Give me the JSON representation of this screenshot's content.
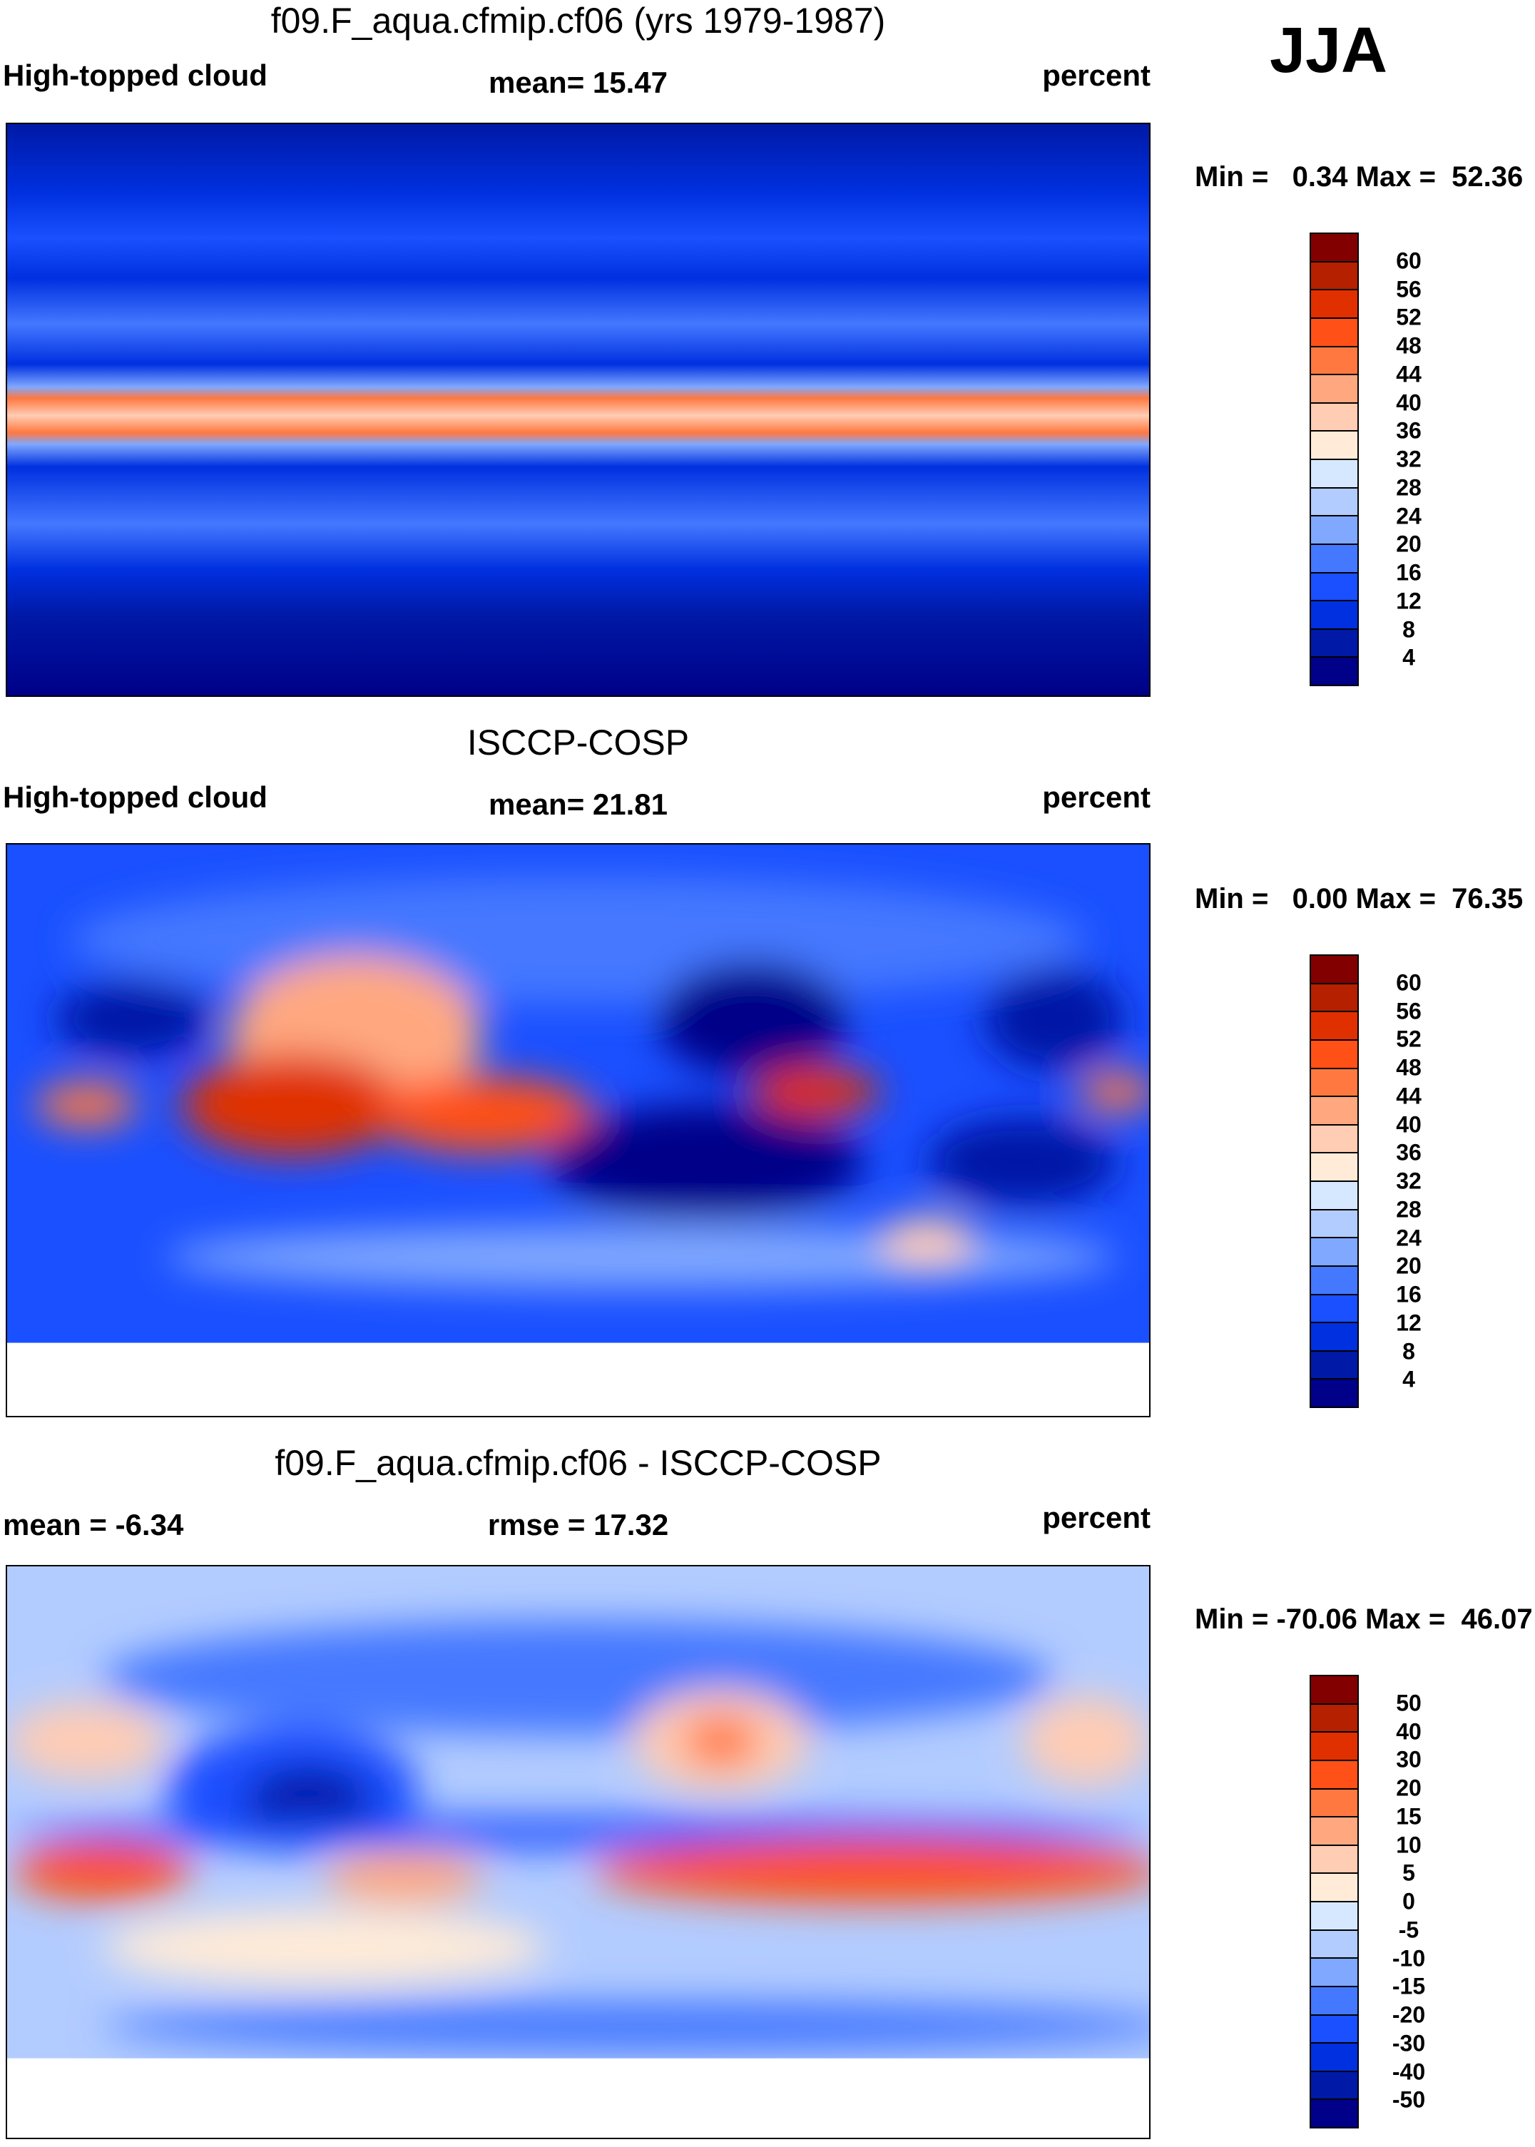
{
  "season": "JJA",
  "units": "percent",
  "colors": [
    "#000088",
    "#0019a6",
    "#0030e0",
    "#1a50ff",
    "#4478ff",
    "#80a8ff",
    "#b3ccff",
    "#d6e8ff",
    "#ffebd8",
    "#ffccb4",
    "#ffa880",
    "#ff7840",
    "#ff5018",
    "#e03000",
    "#b42000",
    "#820000"
  ],
  "chart_data": [
    {
      "type": "heatmap",
      "title": "f09.F_aqua.cfmip.cf06 (yrs 1979-1987)",
      "left_label": "High-topped cloud",
      "center_label": "mean=  15.47",
      "right_label": "percent",
      "minmax": "Min =   0.34 Max =  52.36",
      "mean": 15.47,
      "min": 0.34,
      "max": 52.36,
      "levels": [
        "60",
        "56",
        "52",
        "48",
        "44",
        "40",
        "36",
        "32",
        "28",
        "24",
        "20",
        "16",
        "12",
        "8",
        "4"
      ]
    },
    {
      "type": "heatmap",
      "title": "ISCCP-COSP",
      "left_label": "High-topped cloud",
      "center_label": "mean=  21.81",
      "right_label": "percent",
      "minmax": "Min =   0.00 Max =  76.35",
      "mean": 21.81,
      "min": 0.0,
      "max": 76.35,
      "levels": [
        "60",
        "56",
        "52",
        "48",
        "44",
        "40",
        "36",
        "32",
        "28",
        "24",
        "20",
        "16",
        "12",
        "8",
        "4"
      ]
    },
    {
      "type": "heatmap",
      "title": "f09.F_aqua.cfmip.cf06 - ISCCP-COSP",
      "left_label": "mean =  -6.34",
      "center_label": "rmse =  17.32",
      "right_label": "percent",
      "minmax": "Min = -70.06 Max =  46.07",
      "mean": -6.34,
      "rmse": 17.32,
      "min": -70.06,
      "max": 46.07,
      "levels": [
        "50",
        "40",
        "30",
        "20",
        "15",
        "10",
        "5",
        "0",
        "-5",
        "-10",
        "-15",
        "-20",
        "-30",
        "-40",
        "-50"
      ]
    }
  ]
}
